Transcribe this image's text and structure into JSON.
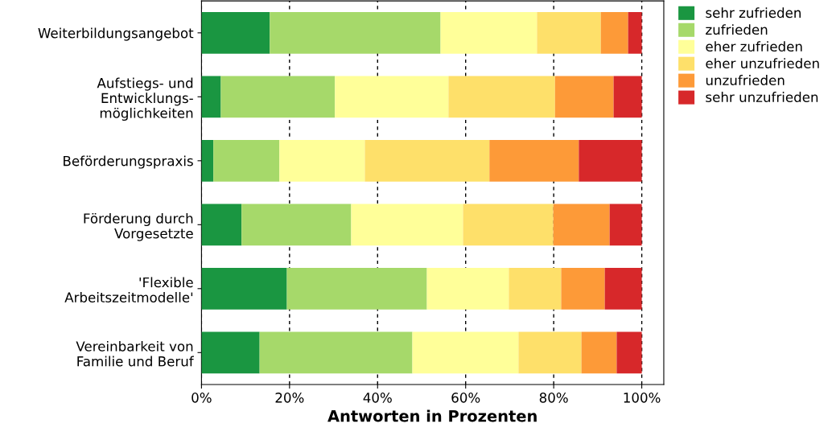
{
  "chart_data": {
    "type": "bar",
    "orientation": "horizontal",
    "stacked": true,
    "xlabel": "Antworten in Prozenten",
    "categories": [
      "Weiterbildungsangebot",
      "Aufstiegs- und\nEntwicklungs-\nmöglichkeiten",
      "Beförderungspraxis",
      "Förderung durch\nVorgesetzte",
      "'Flexible\nArbeitszeitmodelle'",
      "Vereinbarkeit von\nFamilie und Beruf"
    ],
    "series": [
      {
        "name": "sehr zufrieden",
        "color": "#1a9641",
        "values": [
          15.5,
          4.4,
          2.7,
          9.1,
          19.4,
          13.2
        ]
      },
      {
        "name": "zufrieden",
        "color": "#a6d96a",
        "values": [
          38.8,
          25.9,
          15.0,
          24.9,
          31.8,
          34.7
        ]
      },
      {
        "name": "eher zufrieden",
        "color": "#ffff99",
        "values": [
          21.9,
          25.8,
          19.4,
          25.4,
          18.6,
          24.1
        ]
      },
      {
        "name": "eher unzufrieden",
        "color": "#fee06a",
        "values": [
          14.5,
          24.2,
          28.3,
          20.5,
          11.9,
          14.3
        ]
      },
      {
        "name": "unzufrieden",
        "color": "#fd9a38",
        "values": [
          6.2,
          13.3,
          20.3,
          12.8,
          9.9,
          8.0
        ]
      },
      {
        "name": "sehr unzufrieden",
        "color": "#d7282a",
        "values": [
          3.1,
          6.4,
          14.3,
          7.3,
          8.4,
          5.7
        ]
      }
    ],
    "xlim": [
      0,
      105
    ],
    "xticks": [
      {
        "value": 0,
        "label": "0%"
      },
      {
        "value": 20,
        "label": "20%"
      },
      {
        "value": 40,
        "label": "40%"
      },
      {
        "value": 60,
        "label": "60%"
      },
      {
        "value": 80,
        "label": "80%"
      },
      {
        "value": 100,
        "label": "100%"
      }
    ],
    "grid": "x",
    "line_style": "dashed",
    "legend": "top right"
  }
}
